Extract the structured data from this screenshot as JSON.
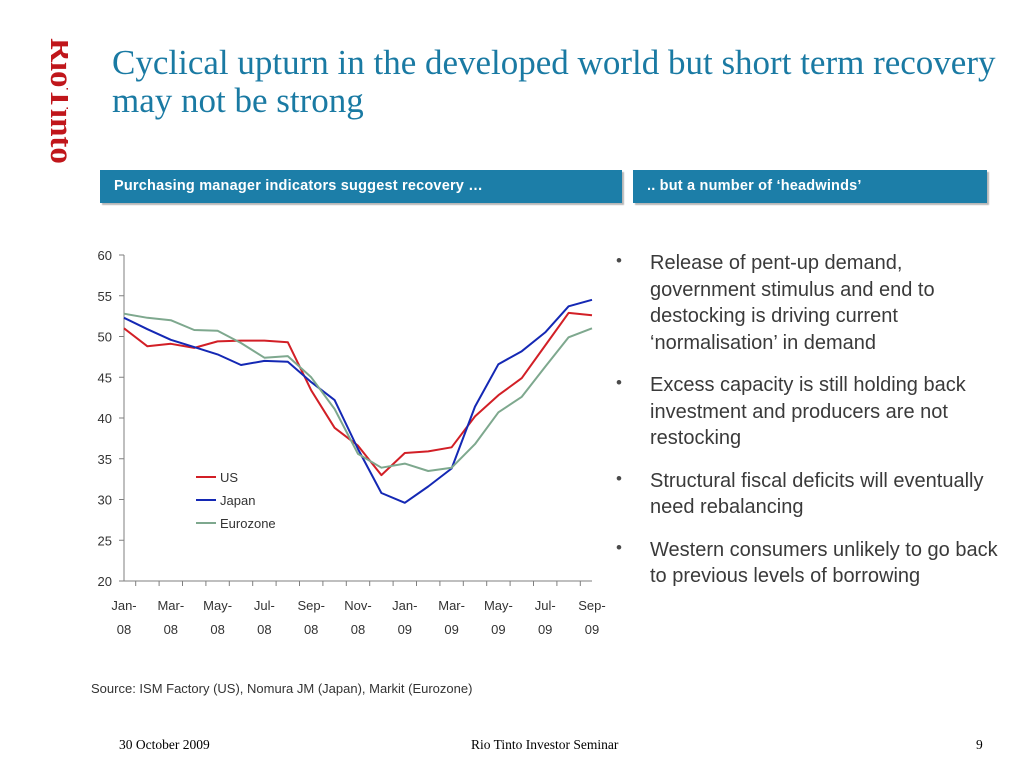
{
  "brand": {
    "logo_text": "RioTinto",
    "color": "#c0161b"
  },
  "slide": {
    "title": "Cyclical upturn in the developed world but short term recovery may not be strong",
    "left_banner": "Purchasing manager indicators suggest recovery …",
    "right_banner": ".. but a number of ‘headwinds’",
    "banner_color": "#1c7ea8",
    "bullet_symbol": "•",
    "bullets": [
      "Release of pent-up demand, government stimulus and end to destocking is driving current ‘normalisation’ in demand",
      "Excess capacity is still holding back investment and producers are not restocking",
      "Structural fiscal deficits will eventually need rebalancing",
      "Western consumers unlikely to go back to previous levels of borrowing"
    ],
    "source": "Source: ISM Factory (US), Nomura JM (Japan), Markit (Eurozone)"
  },
  "footer": {
    "date": "30 October 2009",
    "center": "Rio Tinto Investor Seminar",
    "page": "9"
  },
  "chart_data": {
    "type": "line",
    "title": "",
    "xlabel": "",
    "ylabel": "",
    "ylim": [
      20,
      60
    ],
    "yticks": [
      20,
      25,
      30,
      35,
      40,
      45,
      50,
      55,
      60
    ],
    "months": 21,
    "x_tick_index": [
      0,
      2,
      4,
      6,
      8,
      10,
      12,
      14,
      16,
      18,
      20
    ],
    "x_ticks": [
      [
        "Jan-",
        "08"
      ],
      [
        "Mar-",
        "08"
      ],
      [
        "May-",
        "08"
      ],
      [
        "Jul-",
        "08"
      ],
      [
        "Sep-",
        "08"
      ],
      [
        "Nov-",
        "08"
      ],
      [
        "Jan-",
        "09"
      ],
      [
        "Mar-",
        "09"
      ],
      [
        "May-",
        "09"
      ],
      [
        "Jul-",
        "09"
      ],
      [
        "Sep-",
        "09"
      ]
    ],
    "legend_position": "left-center",
    "series": [
      {
        "name": "US",
        "color": "#d21f26",
        "values": [
          51.0,
          48.8,
          49.1,
          48.6,
          49.4,
          49.5,
          49.5,
          49.3,
          43.4,
          38.8,
          36.6,
          33.0,
          35.7,
          35.9,
          36.4,
          40.2,
          42.8,
          44.9,
          48.9,
          52.9,
          52.6
        ]
      },
      {
        "name": "Japan",
        "color": "#1428b4",
        "values": [
          52.3,
          50.9,
          49.6,
          48.7,
          47.8,
          46.5,
          47.0,
          46.9,
          44.4,
          42.2,
          36.2,
          30.8,
          29.6,
          31.6,
          33.8,
          41.4,
          46.6,
          48.2,
          50.5,
          53.7,
          54.5
        ]
      },
      {
        "name": "Eurozone",
        "color": "#7ea88e",
        "values": [
          52.8,
          52.3,
          52.0,
          50.8,
          50.7,
          49.2,
          47.4,
          47.6,
          45.0,
          41.1,
          35.6,
          33.9,
          34.4,
          33.5,
          33.9,
          36.8,
          40.7,
          42.6,
          46.3,
          49.9,
          51.0
        ]
      }
    ]
  }
}
